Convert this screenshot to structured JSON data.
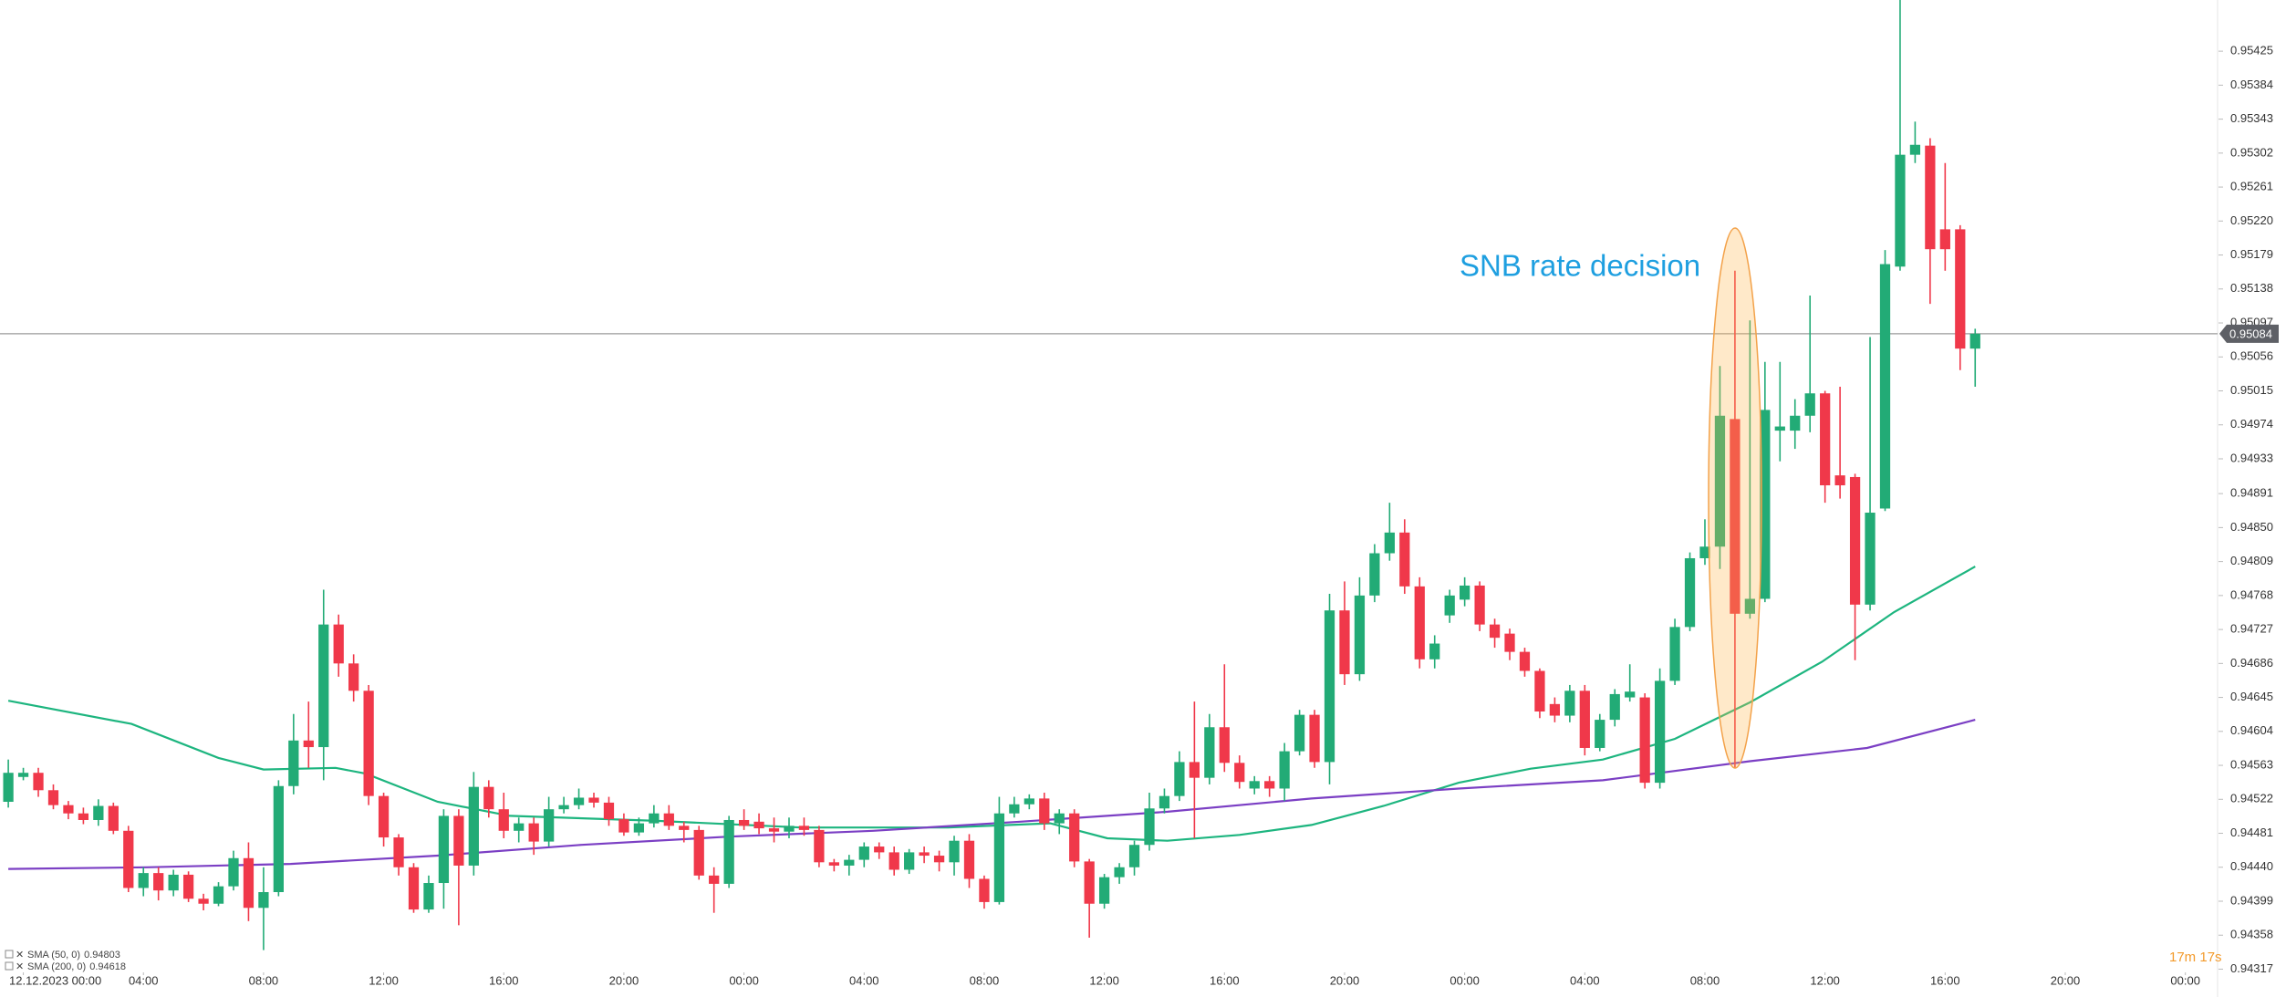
{
  "chart_data": {
    "type": "candlestick",
    "annotation": "SNB rate decision",
    "countdown": "17m 17s",
    "last_price": 0.95084,
    "up_color": "#22ab76",
    "down_color": "#f0384a",
    "xlim": [
      -0.8,
      73
    ],
    "ylim": [
      0.9429,
      0.955
    ],
    "xticks": [
      {
        "value": 0,
        "label": "12.12.2023 00:00"
      },
      {
        "value": 4,
        "label": "04:00"
      },
      {
        "value": 8,
        "label": "08:00"
      },
      {
        "value": 12,
        "label": "12:00"
      },
      {
        "value": 16,
        "label": "16:00"
      },
      {
        "value": 20,
        "label": "20:00"
      },
      {
        "value": 24,
        "label": "00:00"
      },
      {
        "value": 28,
        "label": "04:00"
      },
      {
        "value": 32,
        "label": "08:00"
      },
      {
        "value": 36,
        "label": "12:00"
      },
      {
        "value": 40,
        "label": "16:00"
      },
      {
        "value": 44,
        "label": "20:00"
      },
      {
        "value": 48,
        "label": "00:00"
      },
      {
        "value": 52,
        "label": "04:00"
      },
      {
        "value": 56,
        "label": "08:00"
      },
      {
        "value": 60,
        "label": "12:00"
      },
      {
        "value": 64,
        "label": "16:00"
      },
      {
        "value": 68,
        "label": "20:00"
      },
      {
        "value": 72,
        "label": "00:00"
      }
    ],
    "yticks": [
      0.95425,
      0.95384,
      0.95343,
      0.95302,
      0.95261,
      {
        "value": 0.9522,
        "label": "0.95220"
      },
      0.95179,
      0.95138,
      0.95097,
      0.95056,
      0.95015,
      0.94974,
      0.94933,
      0.94891,
      {
        "value": 0.9485,
        "label": "0.94850"
      },
      0.94809,
      0.94768,
      0.94727,
      0.94686,
      0.94645,
      0.94604,
      0.94563,
      0.94522,
      0.94481,
      {
        "value": 0.9444,
        "label": "0.94440"
      },
      0.94399,
      0.94358,
      0.94317
    ],
    "x": [
      -0.5,
      0,
      0.5,
      1,
      1.5,
      2,
      2.5,
      3,
      3.5,
      4,
      4.5,
      5,
      5.5,
      6,
      6.5,
      7,
      7.5,
      8,
      8.5,
      9,
      9.5,
      10,
      10.5,
      11,
      11.5,
      12,
      12.5,
      13,
      13.5,
      14,
      14.5,
      15,
      15.5,
      16,
      16.5,
      17,
      17.5,
      18,
      18.5,
      19,
      19.5,
      20,
      20.5,
      21,
      21.5,
      22,
      22.5,
      23,
      23.5,
      24,
      24.5,
      25,
      25.5,
      26,
      26.5,
      27,
      27.5,
      28,
      28.5,
      29,
      29.5,
      30,
      30.5,
      31,
      31.5,
      32,
      32.5,
      33,
      33.5,
      34,
      34.5,
      35,
      35.5,
      36,
      36.5,
      37,
      37.5,
      38,
      38.5,
      39,
      39.5,
      40,
      40.5,
      41,
      41.5,
      42,
      42.5,
      43,
      43.5,
      44,
      44.5,
      45,
      45.5,
      46,
      46.5,
      47,
      47.5,
      48,
      48.5,
      49,
      49.5,
      50,
      50.5,
      51,
      51.5,
      52,
      52.5,
      53,
      53.5,
      54,
      54.5,
      55,
      55.5,
      56,
      56.5,
      57,
      57.5,
      58,
      58.5,
      59,
      59.5,
      60,
      60.5,
      61,
      61.5,
      62,
      62.5,
      63,
      63.5,
      64,
      64.5,
      65
    ],
    "open": [
      0.94519,
      0.94549,
      0.94554,
      0.94533,
      0.94515,
      0.94505,
      0.94497,
      0.94514,
      0.94484,
      0.94415,
      0.94433,
      0.94412,
      0.94431,
      0.94402,
      0.94396,
      0.94417,
      0.94451,
      0.94391,
      0.9441,
      0.94538,
      0.94593,
      0.94585,
      0.94733,
      0.94686,
      0.94653,
      0.94526,
      0.94476,
      0.9444,
      0.94389,
      0.94421,
      0.94502,
      0.94442,
      0.94537,
      0.9451,
      0.94484,
      0.94493,
      0.94471,
      0.9451,
      0.94515,
      0.94524,
      0.94518,
      0.94498,
      0.94482,
      0.94493,
      0.94505,
      0.9449,
      0.94485,
      0.9443,
      0.9442,
      0.94497,
      0.94495,
      0.94487,
      0.94483,
      0.9449,
      0.94485,
      0.94446,
      0.94442,
      0.94449,
      0.94465,
      0.94458,
      0.94437,
      0.94458,
      0.94454,
      0.94446,
      0.94472,
      0.94426,
      0.94398,
      0.94505,
      0.94516,
      0.94523,
      0.94493,
      0.94505,
      0.94447,
      0.94396,
      0.94428,
      0.9444,
      0.94467,
      0.94511,
      0.94526,
      0.94567,
      0.94548,
      0.94609,
      0.94566,
      0.94535,
      0.94544,
      0.94535,
      0.9458,
      0.94624,
      0.94567,
      0.9475,
      0.94673,
      0.94768,
      0.94819,
      0.94844,
      0.94779,
      0.94691,
      0.94744,
      0.94763,
      0.9478,
      0.94733,
      0.94722,
      0.947,
      0.94677,
      0.94637,
      0.94623,
      0.94653,
      0.94584,
      0.94618,
      0.94645,
      0.94645,
      0.94542,
      0.94665,
      0.9473,
      0.94813,
      0.94827,
      0.94981,
      0.94746,
      0.94764,
      0.94967,
      0.94967,
      0.94985,
      0.95012,
      0.94913,
      0.94911,
      0.94757,
      0.94873,
      0.95165,
      0.953,
      0.95311,
      0.9521,
      0.9521,
      0.95066
    ],
    "high": [
      0.9457,
      0.9456,
      0.9456,
      0.9454,
      0.9452,
      0.94512,
      0.94522,
      0.94518,
      0.9449,
      0.9444,
      0.9444,
      0.94437,
      0.94435,
      0.94408,
      0.94422,
      0.9446,
      0.9447,
      0.9444,
      0.94545,
      0.94625,
      0.9464,
      0.94775,
      0.94745,
      0.94697,
      0.9466,
      0.9453,
      0.9448,
      0.94445,
      0.9443,
      0.9451,
      0.9451,
      0.94555,
      0.94545,
      0.9453,
      0.945,
      0.945,
      0.94525,
      0.94525,
      0.94535,
      0.9453,
      0.94525,
      0.94505,
      0.945,
      0.94515,
      0.94515,
      0.94495,
      0.9449,
      0.9444,
      0.94502,
      0.9451,
      0.94505,
      0.945,
      0.945,
      0.945,
      0.9449,
      0.9445,
      0.94455,
      0.9447,
      0.9447,
      0.94465,
      0.94462,
      0.94465,
      0.9446,
      0.94478,
      0.9448,
      0.9443,
      0.94525,
      0.94525,
      0.94528,
      0.9453,
      0.9451,
      0.9451,
      0.9445,
      0.94432,
      0.94445,
      0.94472,
      0.9453,
      0.94535,
      0.9458,
      0.9464,
      0.94625,
      0.94685,
      0.94575,
      0.9455,
      0.9455,
      0.9459,
      0.9463,
      0.9463,
      0.9477,
      0.94785,
      0.9479,
      0.9483,
      0.9488,
      0.9486,
      0.9479,
      0.9472,
      0.94775,
      0.9479,
      0.94785,
      0.9474,
      0.94728,
      0.94705,
      0.9468,
      0.94645,
      0.9466,
      0.9466,
      0.94625,
      0.94655,
      0.94685,
      0.9465,
      0.9468,
      0.9474,
      0.9482,
      0.9486,
      0.95045,
      0.9516,
      0.951,
      0.9505,
      0.9505,
      0.95005,
      0.9513,
      0.95015,
      0.9502,
      0.94915,
      0.9508,
      0.95185,
      0.9549,
      0.9534,
      0.9532,
      0.9529,
      0.95215,
      0.9509
    ],
    "low": [
      0.94512,
      0.94545,
      0.94525,
      0.9451,
      0.94498,
      0.94492,
      0.9449,
      0.9448,
      0.9441,
      0.94405,
      0.944,
      0.94405,
      0.94398,
      0.94388,
      0.94393,
      0.94412,
      0.94375,
      0.9434,
      0.94405,
      0.94528,
      0.9456,
      0.94545,
      0.9467,
      0.9464,
      0.94515,
      0.94465,
      0.9443,
      0.94385,
      0.94385,
      0.9439,
      0.9437,
      0.9443,
      0.945,
      0.94475,
      0.9447,
      0.94455,
      0.94465,
      0.94505,
      0.9451,
      0.94512,
      0.9449,
      0.94478,
      0.94478,
      0.94488,
      0.94485,
      0.9447,
      0.94425,
      0.94385,
      0.94415,
      0.94485,
      0.9448,
      0.9447,
      0.94475,
      0.94478,
      0.9444,
      0.94435,
      0.9443,
      0.9444,
      0.9445,
      0.9443,
      0.94432,
      0.94445,
      0.94435,
      0.9443,
      0.94415,
      0.9439,
      0.94395,
      0.945,
      0.9451,
      0.94485,
      0.9448,
      0.9444,
      0.94355,
      0.9439,
      0.9442,
      0.9443,
      0.9446,
      0.94505,
      0.9452,
      0.94475,
      0.9454,
      0.94555,
      0.94535,
      0.94528,
      0.94525,
      0.9452,
      0.94575,
      0.9456,
      0.9454,
      0.9466,
      0.94665,
      0.9476,
      0.9481,
      0.9477,
      0.9468,
      0.9468,
      0.94735,
      0.94755,
      0.94725,
      0.94705,
      0.9469,
      0.9467,
      0.9462,
      0.94615,
      0.94615,
      0.94575,
      0.9458,
      0.9461,
      0.9464,
      0.94535,
      0.94535,
      0.9466,
      0.94725,
      0.94805,
      0.948,
      0.9456,
      0.9474,
      0.9476,
      0.9493,
      0.94945,
      0.94965,
      0.9488,
      0.94885,
      0.9469,
      0.9475,
      0.9487,
      0.9516,
      0.9529,
      0.9512,
      0.9516,
      0.9504,
      0.9502
    ],
    "close": [
      0.94554,
      0.94554,
      0.94533,
      0.94515,
      0.94505,
      0.94497,
      0.94514,
      0.94484,
      0.94415,
      0.94433,
      0.94412,
      0.94431,
      0.94402,
      0.94396,
      0.94417,
      0.94451,
      0.94391,
      0.9441,
      0.94538,
      0.94593,
      0.94585,
      0.94733,
      0.94686,
      0.94653,
      0.94526,
      0.94476,
      0.9444,
      0.94389,
      0.94421,
      0.94502,
      0.94442,
      0.94537,
      0.9451,
      0.94484,
      0.94493,
      0.94471,
      0.9451,
      0.94515,
      0.94524,
      0.94518,
      0.94498,
      0.94482,
      0.94493,
      0.94505,
      0.9449,
      0.94485,
      0.9443,
      0.9442,
      0.94497,
      0.9449,
      0.94487,
      0.94483,
      0.9449,
      0.94485,
      0.94446,
      0.94442,
      0.94449,
      0.94465,
      0.94458,
      0.94437,
      0.94458,
      0.94454,
      0.94446,
      0.94472,
      0.94426,
      0.94398,
      0.94505,
      0.94516,
      0.94523,
      0.94493,
      0.94505,
      0.94447,
      0.94396,
      0.94428,
      0.9444,
      0.94467,
      0.94511,
      0.94526,
      0.94567,
      0.94548,
      0.94609,
      0.94566,
      0.94543,
      0.94544,
      0.94535,
      0.9458,
      0.94624,
      0.94567,
      0.9475,
      0.94673,
      0.94768,
      0.94819,
      0.94844,
      0.94779,
      0.94691,
      0.9471,
      0.94768,
      0.9478,
      0.94733,
      0.94717,
      0.947,
      0.94677,
      0.94628,
      0.94623,
      0.94653,
      0.94584,
      0.94618,
      0.94649,
      0.94652,
      0.94542,
      0.94665,
      0.9473,
      0.94813,
      0.94827,
      0.94985,
      0.94746,
      0.94764,
      0.94992,
      0.94972,
      0.94985,
      0.95012,
      0.94901,
      0.94901,
      0.94757,
      0.94868,
      0.95168,
      0.953,
      0.95312,
      0.95186,
      0.95186,
      0.95066,
      0.95084
    ],
    "series": [
      {
        "name": "SMA (50, 0)",
        "last_value": 0.94803,
        "color": "#1db57f",
        "x": [
          -0.5,
          3.6,
          6.5,
          8,
          10.4,
          11.4,
          13.8,
          16.2,
          21.1,
          25.9,
          30.8,
          34.2,
          36.1,
          38.1,
          40.5,
          42.9,
          45.3,
          47.8,
          50.2,
          52.6,
          55,
          57.5,
          59.9,
          62.3,
          65
        ],
        "values": [
          0.94641,
          0.94613,
          0.94572,
          0.94558,
          0.9456,
          0.94553,
          0.94519,
          0.94502,
          0.94496,
          0.94488,
          0.94488,
          0.94493,
          0.94475,
          0.94472,
          0.94479,
          0.94491,
          0.94514,
          0.94542,
          0.94559,
          0.9457,
          0.94595,
          0.94639,
          0.94688,
          0.94748,
          0.94803
        ]
      },
      {
        "name": "SMA (200, 0)",
        "last_value": 0.94618,
        "color": "#7b3fc4",
        "x": [
          -0.5,
          4.1,
          8.9,
          13.8,
          18.6,
          23.5,
          28.3,
          33.2,
          38.1,
          42.9,
          47.8,
          52.6,
          57.5,
          61.4,
          65
        ],
        "values": [
          0.94438,
          0.9444,
          0.94444,
          0.94454,
          0.94467,
          0.94477,
          0.94484,
          0.94495,
          0.94507,
          0.94523,
          0.94535,
          0.94545,
          0.94568,
          0.94584,
          0.94618
        ]
      }
    ]
  }
}
